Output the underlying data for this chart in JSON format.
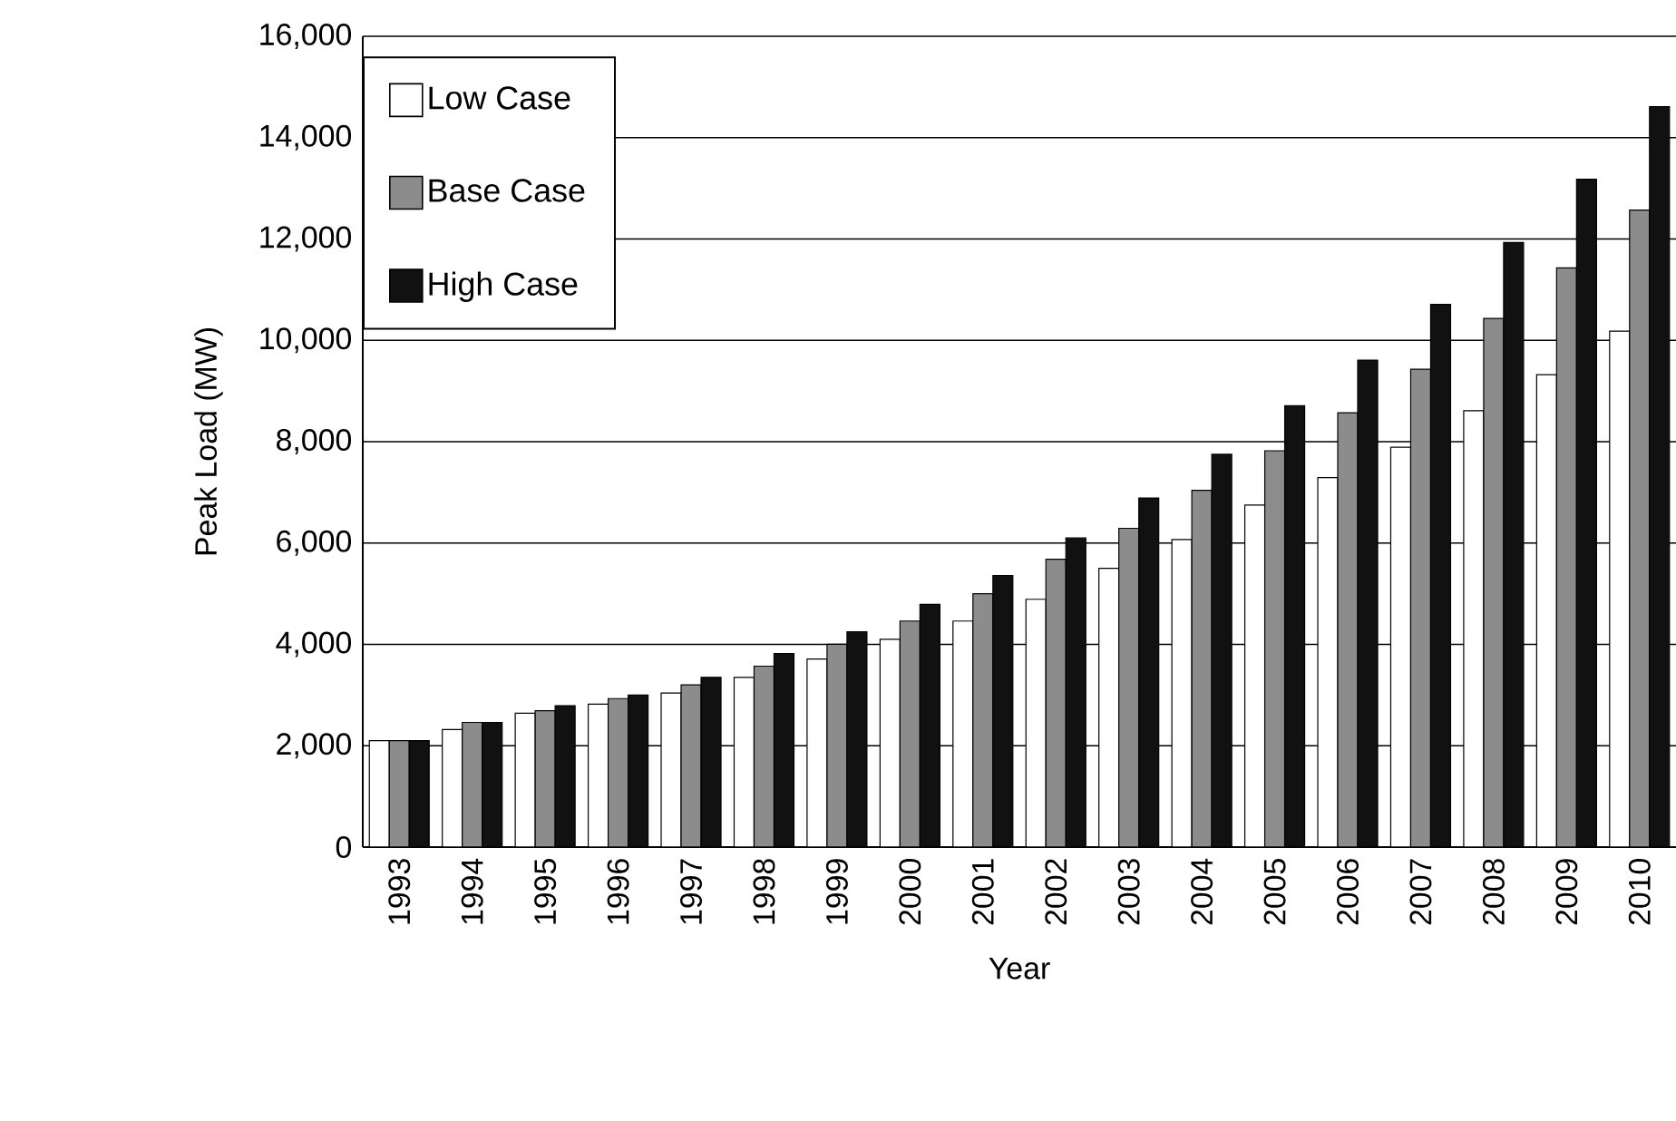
{
  "chart_data": {
    "type": "bar",
    "xlabel": "Year",
    "ylabel": "Peak Load (MW)",
    "categories": [
      "1993",
      "1994",
      "1995",
      "1996",
      "1997",
      "1998",
      "1999",
      "2000",
      "2001",
      "2002",
      "2003",
      "2004",
      "2005",
      "2006",
      "2007",
      "2008",
      "2009",
      "2010"
    ],
    "series": [
      {
        "name": "Low Case",
        "color": "#ffffff",
        "values": [
          2100,
          2320,
          2640,
          2820,
          3040,
          3350,
          3710,
          4100,
          4460,
          4890,
          5500,
          6070,
          6750,
          7290,
          7890,
          8610,
          9320,
          10180
        ]
      },
      {
        "name": "Base Case",
        "color": "#8c8c8c",
        "values": [
          2100,
          2460,
          2690,
          2930,
          3200,
          3570,
          4000,
          4460,
          5000,
          5680,
          6290,
          7040,
          7820,
          8570,
          9430,
          10430,
          11430,
          12570
        ]
      },
      {
        "name": "High Case",
        "color": "#111111",
        "values": [
          2100,
          2460,
          2790,
          3000,
          3350,
          3820,
          4250,
          4790,
          5360,
          6100,
          6890,
          7750,
          8710,
          9610,
          10710,
          11930,
          13180,
          14610
        ]
      }
    ],
    "ylim": [
      0,
      16000
    ],
    "yticks": [
      {
        "value": 0,
        "label": "0"
      },
      {
        "value": 2000,
        "label": "2,000"
      },
      {
        "value": 4000,
        "label": "4,000"
      },
      {
        "value": 6000,
        "label": "6,000"
      },
      {
        "value": 8000,
        "label": "8,000"
      },
      {
        "value": 10000,
        "label": "10,000"
      },
      {
        "value": 12000,
        "label": "12,000"
      },
      {
        "value": 14000,
        "label": "14,000"
      },
      {
        "value": 16000,
        "label": "16,000"
      }
    ],
    "grid": "y",
    "legend": "top left"
  }
}
